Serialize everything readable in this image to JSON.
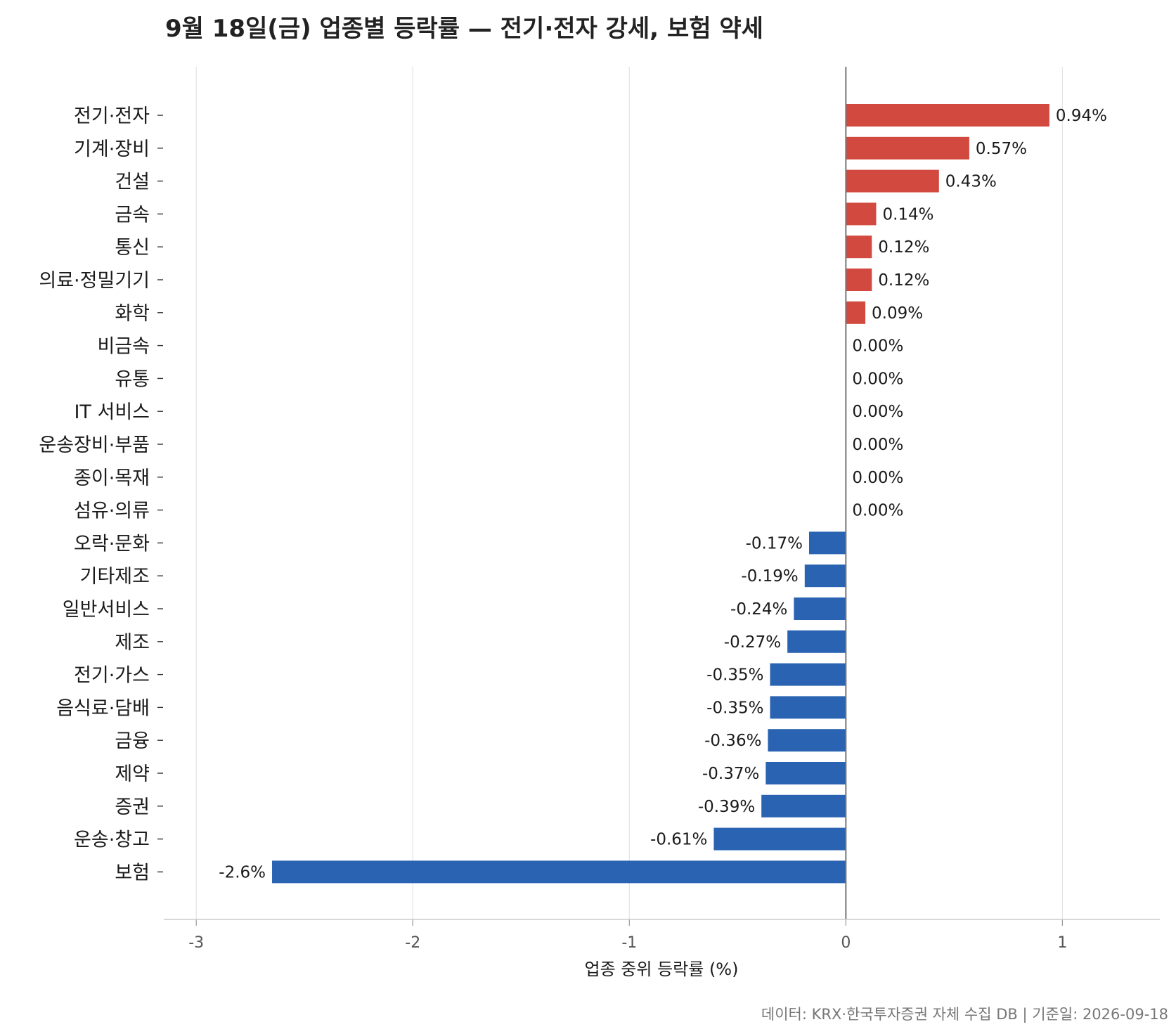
{
  "chart_data": {
    "type": "bar",
    "orientation": "horizontal",
    "title": "9월 18일(금) 업종별 등락률 — 전기·전자 강세, 보험 약세",
    "xlabel": "업종 중위 등락률 (%)",
    "ylabel": "",
    "xlim": [
      -3.15,
      1.45
    ],
    "xticks": [
      "-3",
      "-2",
      "-1",
      "0",
      "1"
    ],
    "grid": true,
    "categories": [
      "전기·전자",
      "기계·장비",
      "건설",
      "금속",
      "통신",
      "의료·정밀기기",
      "화학",
      "비금속",
      "유통",
      "IT 서비스",
      "운송장비·부품",
      "종이·목재",
      "섬유·의류",
      "오락·문화",
      "기타제조",
      "일반서비스",
      "제조",
      "전기·가스",
      "음식료·담배",
      "금융",
      "제약",
      "증권",
      "운송·창고",
      "보험"
    ],
    "values": [
      0.94,
      0.57,
      0.43,
      0.14,
      0.12,
      0.12,
      0.09,
      0.0,
      0.0,
      0.0,
      0.0,
      0.0,
      0.0,
      -0.17,
      -0.19,
      -0.24,
      -0.27,
      -0.35,
      -0.35,
      -0.36,
      -0.37,
      -0.39,
      -0.61,
      -2.65
    ],
    "value_labels": [
      "0.94%",
      "0.57%",
      "0.43%",
      "0.14%",
      "0.12%",
      "0.12%",
      "0.09%",
      "0.00%",
      "0.00%",
      "0.00%",
      "0.00%",
      "0.00%",
      "0.00%",
      "-0.17%",
      "-0.19%",
      "-0.24%",
      "-0.27%",
      "-0.35%",
      "-0.35%",
      "-0.36%",
      "-0.37%",
      "-0.39%",
      "-0.61%",
      "-2.6%"
    ],
    "colors": {
      "positive": "#d24a3f",
      "negative": "#2a63b1",
      "zero_line": "#777777",
      "grid": "#e3e3e3"
    },
    "source": "데이터: KRX·한국투자증권 자체 수집 DB  |  기준일: 2026-09-18"
  }
}
